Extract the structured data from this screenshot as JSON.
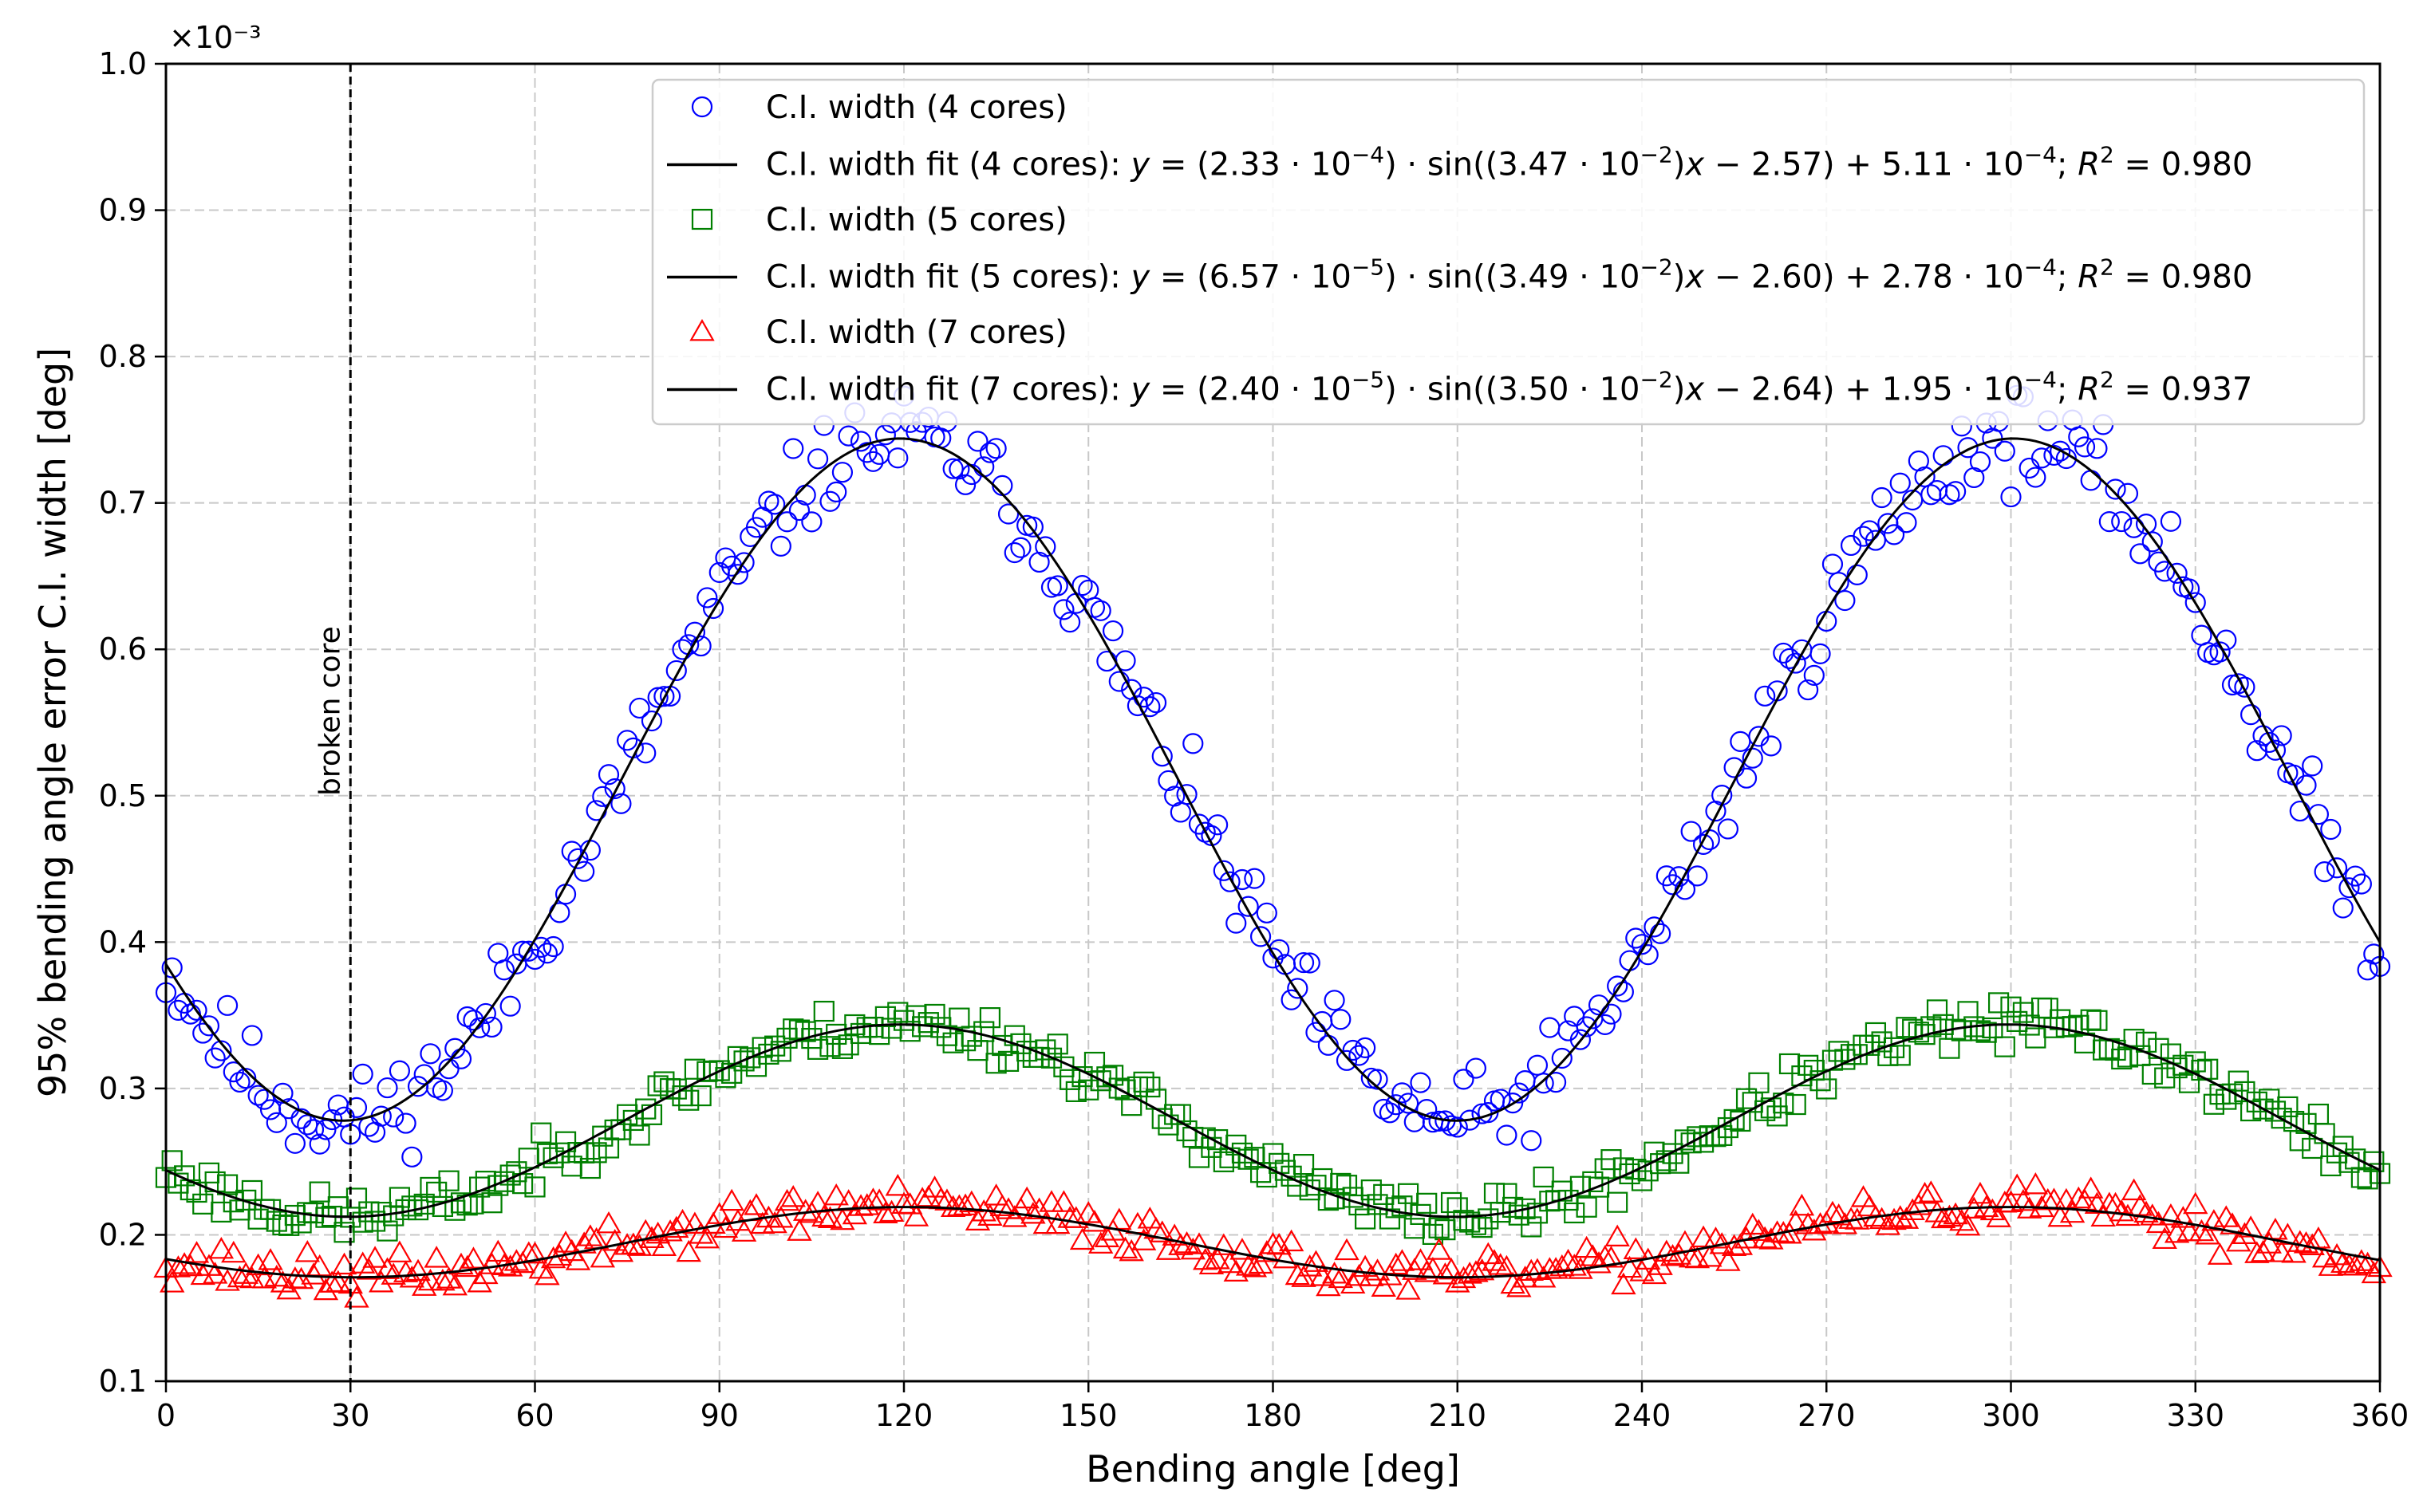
{
  "chart_data": {
    "type": "scatter",
    "title": "",
    "xlabel": "Bending angle [deg]",
    "ylabel": "95% bending angle error C.I. width [deg]",
    "y_scale_label": "×10⁻³",
    "xlim": [
      0,
      360
    ],
    "ylim": [
      0.1,
      1.0
    ],
    "x_ticks": [
      0,
      30,
      60,
      90,
      120,
      150,
      180,
      210,
      240,
      270,
      300,
      330,
      360
    ],
    "y_ticks": [
      0.1,
      0.2,
      0.3,
      0.4,
      0.5,
      0.6,
      0.7,
      0.8,
      0.9,
      1.0
    ],
    "x_tick_labels": [
      "0",
      "30",
      "60",
      "90",
      "120",
      "150",
      "180",
      "210",
      "240",
      "270",
      "300",
      "330",
      "360"
    ],
    "y_tick_labels": [
      "0.1",
      "0.2",
      "0.3",
      "0.4",
      "0.5",
      "0.6",
      "0.7",
      "0.8",
      "0.9",
      "1.0"
    ],
    "grid": true,
    "legend_position": "top-right",
    "annotation": {
      "text": "broken core",
      "x": 30
    },
    "series": [
      {
        "name": "C.I. width (4 cores)",
        "marker": "circle",
        "color": "#0000ff",
        "fit": {
          "a": 0.233,
          "b": 0.0347,
          "c": -2.57,
          "d": 0.511
        },
        "noise": 0.022,
        "seed": 11
      },
      {
        "name": "C.I. width (5 cores)",
        "marker": "square",
        "color": "#008000",
        "fit": {
          "a": 0.0657,
          "b": 0.0349,
          "c": -2.6,
          "d": 0.278
        },
        "noise": 0.011,
        "seed": 23
      },
      {
        "name": "C.I. width (7 cores)",
        "marker": "triangle",
        "color": "#ff0000",
        "fit": {
          "a": 0.024,
          "b": 0.035,
          "c": -2.64,
          "d": 0.195
        },
        "noise": 0.01,
        "seed": 37
      }
    ],
    "fits": [
      {
        "label": "C.I. width fit (4 cores):",
        "eq": {
          "a_m": "2.33",
          "a_e": "−4",
          "b_m": "3.47",
          "b_e": "−2",
          "c": "2.57",
          "d_m": "5.11",
          "d_e": "−4",
          "r2": "0.980"
        }
      },
      {
        "label": "C.I. width fit (5 cores):",
        "eq": {
          "a_m": "6.57",
          "a_e": "−5",
          "b_m": "3.49",
          "b_e": "−2",
          "c": "2.60",
          "d_m": "2.78",
          "d_e": "−4",
          "r2": "0.980"
        }
      },
      {
        "label": "C.I. width fit (7 cores):",
        "eq": {
          "a_m": "2.40",
          "a_e": "−5",
          "b_m": "3.50",
          "b_e": "−2",
          "c": "2.64",
          "d_m": "1.95",
          "d_e": "−4",
          "r2": "0.937"
        }
      }
    ],
    "points_per_series": 360,
    "x_step": 1
  }
}
